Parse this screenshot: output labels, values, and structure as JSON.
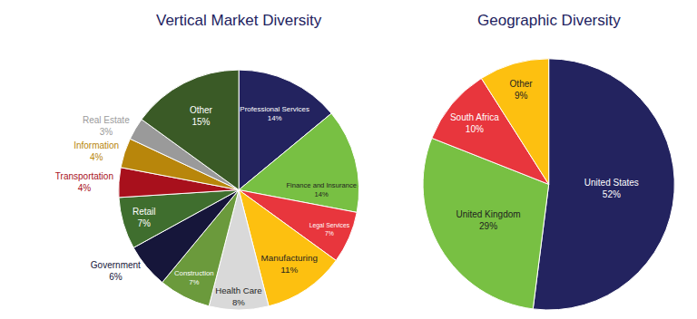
{
  "chart_data": [
    {
      "type": "pie",
      "title": "Vertical Market Diversity",
      "categories": [
        "Professional Services",
        "Finance and Insurance",
        "Legal Services",
        "Manufacturing",
        "Health Care",
        "Construction",
        "Government",
        "Retail",
        "Transportation",
        "Information",
        "Real Estate",
        "Other"
      ],
      "values": [
        14,
        14,
        7,
        11,
        8,
        7,
        6,
        7,
        4,
        4,
        3,
        15
      ],
      "value_labels": [
        "14%",
        "14%",
        "7%",
        "11%",
        "8%",
        "7%",
        "6%",
        "7%",
        "4%",
        "4%",
        "3%",
        "15%"
      ],
      "colors": [
        "#23235f",
        "#78c043",
        "#e8363d",
        "#fdc010",
        "#d9d9d9",
        "#6b9a3c",
        "#16163a",
        "#3f6e2e",
        "#a8101c",
        "#b8860b",
        "#9a9a9a",
        "#3a5a26"
      ],
      "data_labels": true
    },
    {
      "type": "pie",
      "title": "Geographic Diversity",
      "categories": [
        "United States",
        "United Kingdom",
        "South Africa",
        "Other"
      ],
      "values": [
        52,
        29,
        10,
        9
      ],
      "value_labels": [
        "52%",
        "29%",
        "10%",
        "9%"
      ],
      "colors": [
        "#23235f",
        "#78c043",
        "#e8363d",
        "#fdc010"
      ],
      "data_labels": true
    }
  ]
}
